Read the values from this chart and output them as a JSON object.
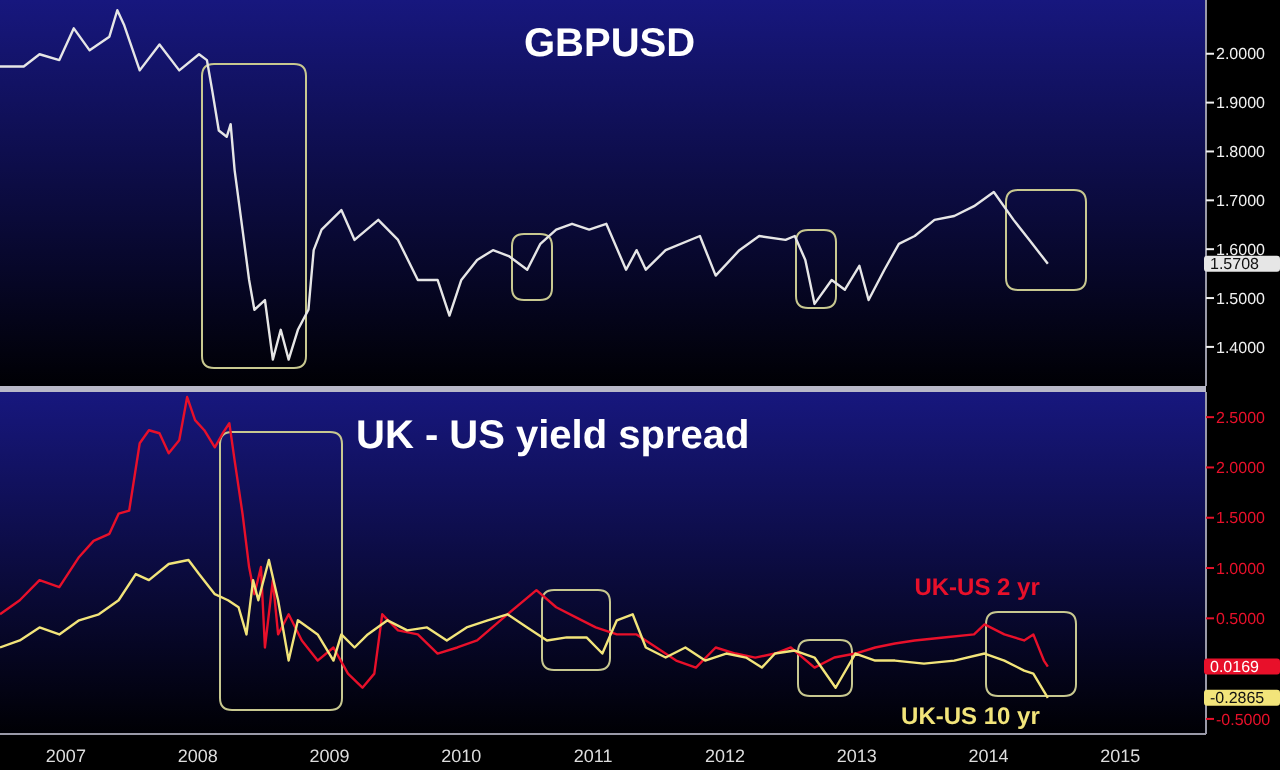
{
  "chart_data": [
    {
      "type": "line",
      "title": "GBPUSD",
      "xlim": [
        2007,
        2016.15
      ],
      "ylim": [
        1.32,
        2.11
      ],
      "tick_labels": "y",
      "grid": false,
      "legend": false,
      "marker": "none",
      "yticks": [
        {
          "value": 1.4,
          "label": "1.4000"
        },
        {
          "value": 1.5,
          "label": "1.5000"
        },
        {
          "value": 1.6,
          "label": "1.6000"
        },
        {
          "value": 1.7,
          "label": "1.7000"
        },
        {
          "value": 1.8,
          "label": "1.8000"
        },
        {
          "value": 1.9,
          "label": "1.9000"
        },
        {
          "value": 2.0,
          "label": "2.0000"
        }
      ],
      "series": [
        {
          "color": "#e6e6e6",
          "x": [
            2007.0,
            2007.18,
            2007.3,
            2007.45,
            2007.56,
            2007.68,
            2007.83,
            2007.89,
            2007.94,
            2008.06,
            2008.21,
            2008.36,
            2008.51,
            2008.57,
            2008.61,
            2008.66,
            2008.72,
            2008.75,
            2008.78,
            2008.84,
            2008.89,
            2008.93,
            2009.01,
            2009.07,
            2009.13,
            2009.19,
            2009.26,
            2009.34,
            2009.38,
            2009.44,
            2009.59,
            2009.69,
            2009.87,
            2010.02,
            2010.17,
            2010.32,
            2010.41,
            2010.5,
            2010.62,
            2010.74,
            2010.86,
            2011.0,
            2011.1,
            2011.22,
            2011.34,
            2011.47,
            2011.6,
            2011.75,
            2011.83,
            2011.9,
            2012.05,
            2012.31,
            2012.43,
            2012.61,
            2012.76,
            2012.96,
            2013.03,
            2013.11,
            2013.18,
            2013.31,
            2013.41,
            2013.52,
            2013.59,
            2013.71,
            2013.82,
            2013.94,
            2014.09,
            2014.24,
            2014.39,
            2014.54,
            2014.69,
            2014.81,
            2014.95
          ],
          "values": [
            1.974,
            1.974,
            1.999,
            1.987,
            2.052,
            2.007,
            2.035,
            2.089,
            2.06,
            1.966,
            2.019,
            1.966,
            1.999,
            1.987,
            1.925,
            1.843,
            1.83,
            1.856,
            1.762,
            1.64,
            1.537,
            1.476,
            1.496,
            1.374,
            1.435,
            1.374,
            1.435,
            1.476,
            1.598,
            1.64,
            1.68,
            1.619,
            1.66,
            1.619,
            1.537,
            1.537,
            1.464,
            1.537,
            1.578,
            1.598,
            1.586,
            1.558,
            1.611,
            1.64,
            1.652,
            1.64,
            1.652,
            1.558,
            1.598,
            1.558,
            1.598,
            1.627,
            1.546,
            1.598,
            1.627,
            1.619,
            1.627,
            1.578,
            1.488,
            1.537,
            1.517,
            1.566,
            1.496,
            1.558,
            1.611,
            1.627,
            1.66,
            1.668,
            1.688,
            1.717,
            1.66,
            1.619,
            1.57
          ]
        }
      ],
      "annotations": [
        "1.5708"
      ]
    },
    {
      "type": "line",
      "title": "UK - US yield spread",
      "xlim": [
        2007,
        2016.15
      ],
      "ylim": [
        -0.65,
        2.75
      ],
      "grid": false,
      "legend": false,
      "marker": "none",
      "xticks": [
        {
          "value": 2007.5,
          "label": "2007"
        },
        {
          "value": 2008.5,
          "label": "2008"
        },
        {
          "value": 2009.5,
          "label": "2009"
        },
        {
          "value": 2010.5,
          "label": "2010"
        },
        {
          "value": 2011.5,
          "label": "2011"
        },
        {
          "value": 2012.5,
          "label": "2012"
        },
        {
          "value": 2013.5,
          "label": "2013"
        },
        {
          "value": 2014.5,
          "label": "2014"
        },
        {
          "value": 2015.5,
          "label": "2015"
        }
      ],
      "yticks": [
        {
          "value": -0.5,
          "label": "-0.5000"
        },
        {
          "value": 0.5,
          "label": "0.5000"
        },
        {
          "value": 1.0,
          "label": "1.0000"
        },
        {
          "value": 1.5,
          "label": "1.5000"
        },
        {
          "value": 2.0,
          "label": "2.0000"
        },
        {
          "value": 2.5,
          "label": "2.5000"
        }
      ],
      "series": [
        {
          "name": "UK-US 2 yr",
          "color": "#e8102a",
          "x": [
            2007.0,
            2007.15,
            2007.3,
            2007.45,
            2007.6,
            2007.71,
            2007.83,
            2007.9,
            2007.98,
            2008.06,
            2008.13,
            2008.21,
            2008.28,
            2008.36,
            2008.42,
            2008.48,
            2008.55,
            2008.63,
            2008.69,
            2008.74,
            2008.78,
            2008.84,
            2008.89,
            2008.93,
            2008.98,
            2009.01,
            2009.07,
            2009.11,
            2009.19,
            2009.29,
            2009.41,
            2009.53,
            2009.64,
            2009.75,
            2009.84,
            2009.9,
            2010.02,
            2010.17,
            2010.32,
            2010.47,
            2010.62,
            2010.85,
            2011.07,
            2011.22,
            2011.37,
            2011.52,
            2011.68,
            2011.83,
            2011.98,
            2012.13,
            2012.28,
            2012.43,
            2012.58,
            2012.73,
            2012.88,
            2013.0,
            2013.18,
            2013.33,
            2013.49,
            2013.64,
            2013.79,
            2013.94,
            2014.16,
            2014.39,
            2014.47,
            2014.62,
            2014.77,
            2014.84,
            2014.92,
            2014.95
          ],
          "values": [
            0.54,
            0.68,
            0.88,
            0.81,
            1.11,
            1.27,
            1.34,
            1.54,
            1.57,
            2.24,
            2.37,
            2.34,
            2.14,
            2.27,
            2.7,
            2.47,
            2.37,
            2.2,
            2.34,
            2.44,
            2.07,
            1.54,
            1.01,
            0.74,
            1.01,
            0.21,
            0.88,
            0.34,
            0.54,
            0.28,
            0.08,
            0.21,
            -0.05,
            -0.19,
            -0.05,
            0.54,
            0.38,
            0.34,
            0.15,
            0.21,
            0.28,
            0.54,
            0.78,
            0.61,
            0.51,
            0.41,
            0.34,
            0.34,
            0.21,
            0.08,
            0.01,
            0.21,
            0.15,
            0.11,
            0.15,
            0.21,
            0.01,
            0.11,
            0.15,
            0.21,
            0.25,
            0.28,
            0.31,
            0.34,
            0.44,
            0.34,
            0.28,
            0.34,
            0.08,
            0.02
          ]
        },
        {
          "name": "UK-US 10 yr",
          "color": "#f2e47a",
          "x": [
            2007.0,
            2007.15,
            2007.3,
            2007.45,
            2007.6,
            2007.75,
            2007.9,
            2008.03,
            2008.13,
            2008.28,
            2008.43,
            2008.51,
            2008.63,
            2008.73,
            2008.81,
            2008.87,
            2008.92,
            2008.96,
            2009.04,
            2009.11,
            2009.19,
            2009.26,
            2009.41,
            2009.53,
            2009.59,
            2009.69,
            2009.79,
            2009.94,
            2010.09,
            2010.24,
            2010.39,
            2010.54,
            2010.7,
            2010.85,
            2011.0,
            2011.15,
            2011.3,
            2011.45,
            2011.57,
            2011.68,
            2011.8,
            2011.9,
            2012.05,
            2012.2,
            2012.35,
            2012.51,
            2012.66,
            2012.78,
            2012.88,
            2013.03,
            2013.18,
            2013.34,
            2013.49,
            2013.64,
            2013.79,
            2014.01,
            2014.24,
            2014.47,
            2014.62,
            2014.77,
            2014.84,
            2014.95
          ],
          "values": [
            0.21,
            0.28,
            0.41,
            0.34,
            0.48,
            0.54,
            0.68,
            0.94,
            0.88,
            1.04,
            1.08,
            0.94,
            0.74,
            0.68,
            0.61,
            0.34,
            0.88,
            0.68,
            1.08,
            0.68,
            0.08,
            0.48,
            0.34,
            0.08,
            0.34,
            0.21,
            0.34,
            0.48,
            0.38,
            0.41,
            0.28,
            0.41,
            0.48,
            0.54,
            0.41,
            0.28,
            0.31,
            0.31,
            0.15,
            0.48,
            0.54,
            0.21,
            0.11,
            0.21,
            0.08,
            0.15,
            0.11,
            0.01,
            0.15,
            0.18,
            0.11,
            -0.19,
            0.15,
            0.08,
            0.08,
            0.05,
            0.08,
            0.15,
            0.08,
            -0.02,
            -0.05,
            -0.29
          ]
        }
      ],
      "annotations": [
        "0.0169",
        "-0.2865"
      ]
    }
  ]
}
